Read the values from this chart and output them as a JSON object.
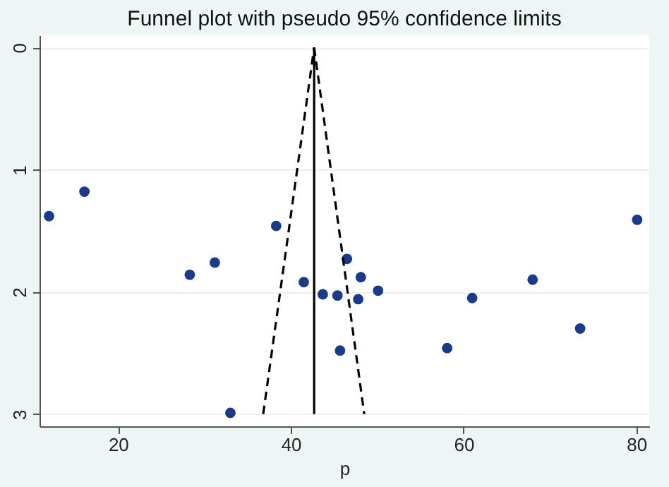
{
  "chart_data": {
    "type": "scatter",
    "title": "Funnel plot with pseudo 95% confidence limits",
    "xlabel": "p",
    "xlim": [
      10.9,
      81.5
    ],
    "xticks": [
      20,
      40,
      60,
      80
    ],
    "ylim": [
      3.1,
      -0.1
    ],
    "yticks": [
      0,
      1,
      2,
      3
    ],
    "grid": "y",
    "series": [
      {
        "color": "#1a3a8a",
        "marker": "circle",
        "x": [
          12.0,
          16.1,
          28.3,
          31.2,
          33.0,
          38.3,
          41.5,
          43.7,
          45.4,
          45.7,
          46.5,
          48.1,
          47.8,
          50.1,
          58.1,
          61.0,
          68.0,
          73.5,
          80.1
        ],
        "values": [
          1.38,
          1.18,
          1.86,
          1.76,
          2.99,
          1.46,
          1.92,
          2.02,
          2.03,
          2.48,
          1.73,
          1.88,
          2.06,
          1.99,
          2.46,
          2.05,
          1.9,
          2.3,
          1.41
        ]
      },
      {
        "type": "line",
        "color": "#000000",
        "line_style": "solid",
        "x": [
          42.7,
          42.7
        ],
        "values": [
          3,
          0
        ]
      },
      {
        "type": "line",
        "color": "#000000",
        "line_style": "dashed",
        "x": [
          36.8,
          42.7
        ],
        "values": [
          3,
          0
        ]
      },
      {
        "type": "line",
        "color": "#000000",
        "line_style": "dashed",
        "x": [
          42.7,
          48.5
        ],
        "values": [
          0,
          3
        ]
      }
    ]
  }
}
